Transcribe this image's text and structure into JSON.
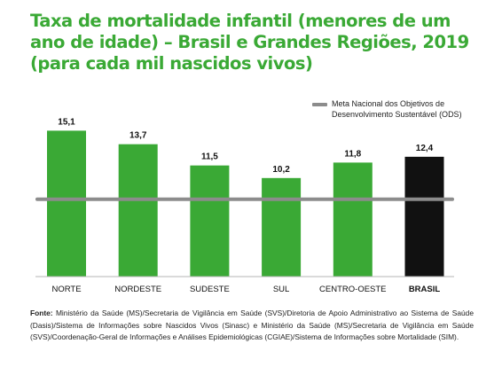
{
  "title_lines": [
    "Taxa de mortalidade infantil (menores de um",
    "ano de idade) – Brasil e Grandes Regiões,  2019",
    "(para cada mil nascidos vivos)"
  ],
  "legend": {
    "line1": "Meta Nacional dos Objetivos de",
    "line2": "Desenvolvimento Sustentável (ODS)",
    "color": "#8c8c8c"
  },
  "source": {
    "label": "Fonte:",
    "text": "Ministério da Saúde (MS)/Secretaria de Vigilância em Saúde (SVS)/Diretoria de Apoio Administrativo ao Sistema de Saúde (Dasis)/Sistema de Informações sobre Nascidos Vivos (Sinasc) e Ministério da Saúde (MS)/Secretaria de Vigilância em Saúde (SVS)/Coordenação-Geral de Informações e Análises Epidemiológicas (CGIAE)/Sistema de Informações sobre Mortalidade (SIM)."
  },
  "chart_data": {
    "type": "bar",
    "title": "Taxa de mortalidade infantil (menores de um ano de idade) – Brasil e Grandes Regiões,  2019 (para cada mil nascidos vivos)",
    "categories": [
      "NORTE",
      "NORDESTE",
      "SUDESTE",
      "SUL",
      "CENTRO-OESTE",
      "BRASIL"
    ],
    "values": [
      15.1,
      13.7,
      11.5,
      10.2,
      11.8,
      12.4
    ],
    "value_labels": [
      "15,1",
      "13,7",
      "11,5",
      "10,2",
      "11,8",
      "12,4"
    ],
    "bar_colors": [
      "#3aa935",
      "#3aa935",
      "#3aa935",
      "#3aa935",
      "#3aa935",
      "#111111"
    ],
    "bold_categories": [
      "BRASIL"
    ],
    "reference_line": {
      "value": 8.0,
      "color": "#8c8c8c"
    },
    "ylim": [
      0,
      16
    ],
    "grid": false,
    "legend_position": "top-right",
    "xlabel": "",
    "ylabel": ""
  }
}
